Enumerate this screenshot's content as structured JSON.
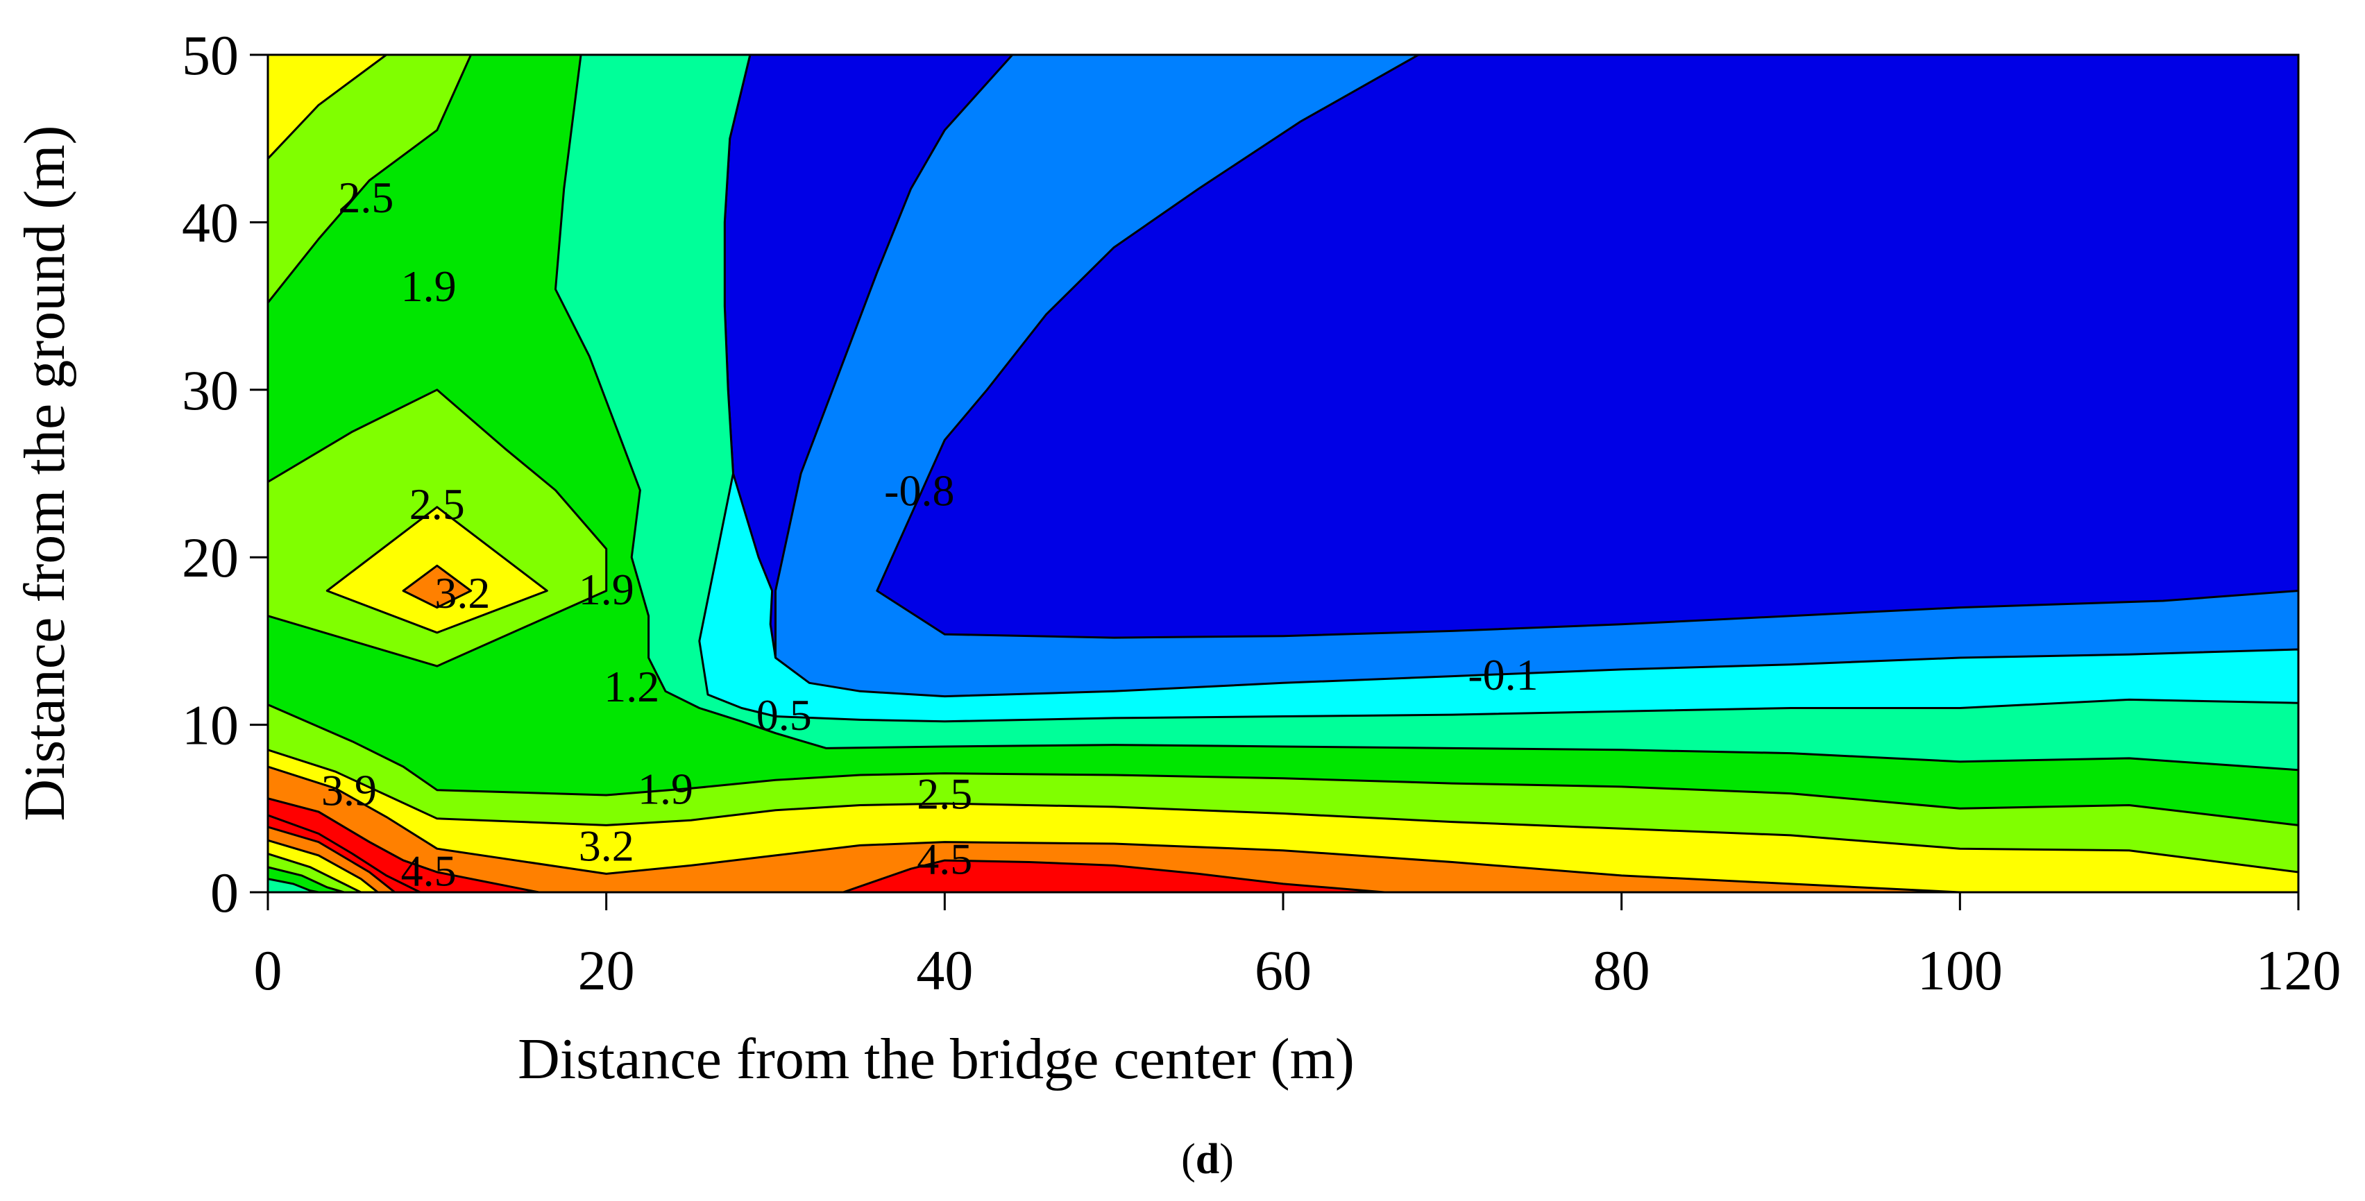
{
  "chart_data": {
    "type": "heatmap",
    "subtype": "filled-contour",
    "xlabel": "Distance from the bridge center (m)",
    "ylabel": "Distance from the ground (m)",
    "xlim": [
      0,
      120
    ],
    "ylim": [
      0,
      50
    ],
    "xticks": [
      "0",
      "20",
      "40",
      "60",
      "80",
      "100",
      "120"
    ],
    "yticks": [
      "0",
      "10",
      "20",
      "30",
      "40",
      "50"
    ],
    "panel_label": {
      "open": "(",
      "letter": "d",
      "close": ")"
    },
    "grid": false,
    "legend": "none",
    "levels": [
      -1.5,
      -0.8,
      -0.1,
      0.5,
      1.2,
      1.9,
      2.5,
      3.2,
      3.9,
      4.5
    ],
    "level_colors": [
      "#0000e6",
      "#0080ff",
      "#00ffff",
      "#00ff99",
      "#00e600",
      "#80ff00",
      "#ffff00",
      "#ff8000",
      "#ff0000"
    ],
    "contour_labels": [
      {
        "text": "2.5",
        "x": 5.8,
        "y": 41.5
      },
      {
        "text": "1.9",
        "x": 9.5,
        "y": 36.2
      },
      {
        "text": "2.5",
        "x": 10,
        "y": 23.2
      },
      {
        "text": "3.2",
        "x": 11.5,
        "y": 17.9
      },
      {
        "text": "1.9",
        "x": 20,
        "y": 18.1
      },
      {
        "text": "1.2",
        "x": 21.5,
        "y": 12.3
      },
      {
        "text": "0.5",
        "x": 30.5,
        "y": 10.6
      },
      {
        "text": "-0.8",
        "x": 38.5,
        "y": 24
      },
      {
        "text": "-0.1",
        "x": 73,
        "y": 13
      },
      {
        "text": "3.9",
        "x": 4.8,
        "y": 6.1
      },
      {
        "text": "1.9",
        "x": 23.5,
        "y": 6.2
      },
      {
        "text": "2.5",
        "x": 40,
        "y": 5.9
      },
      {
        "text": "3.2",
        "x": 20,
        "y": 2.8
      },
      {
        "text": "4.5",
        "x": 9.5,
        "y": 1.3
      },
      {
        "text": "4.5",
        "x": 40,
        "y": 2
      }
    ],
    "regions": [
      {
        "value_range": "below -0.8",
        "color": "#0000e6",
        "x": [
          36,
          40,
          48,
          55,
          62,
          68,
          120,
          120,
          112,
          95,
          80,
          70,
          60,
          50,
          40,
          36
        ],
        "y": [
          18,
          24,
          33,
          38,
          43,
          47,
          47,
          18,
          17.5,
          16.5,
          16,
          15.6,
          15.3,
          15.2,
          15.4,
          18
        ]
      },
      {
        "value_range": "-0.8 to -0.1",
        "color": "#0080ff",
        "x": [
          30,
          31.5,
          36,
          38,
          40,
          44,
          50,
          57,
          60,
          68,
          120,
          120,
          110,
          90,
          70,
          60,
          50,
          40,
          35,
          30
        ],
        "y": [
          18,
          25,
          37,
          42,
          45,
          47.5,
          50,
          50,
          50,
          50,
          50,
          14.5,
          14.3,
          13.5,
          12.9,
          12.5,
          12.0,
          11.7,
          12.0,
          18
        ]
      },
      {
        "value_range": "-0.1 to 0.5",
        "color": "#00ffff",
        "x": [
          26,
          27,
          28,
          29,
          27,
          40,
          44,
          44,
          120,
          120,
          110,
          100,
          80,
          60,
          50,
          40,
          32
        ],
        "y": [
          11.8,
          20,
          30,
          40,
          50,
          50,
          50,
          50,
          50,
          11.2,
          11.5,
          11.0,
          10.8,
          10.5,
          10.4,
          10.2,
          10.6
        ]
      },
      {
        "value_range": "0.5 to 1.2",
        "color": "#00ff99",
        "x": [
          17,
          18,
          20,
          22,
          24,
          26,
          27,
          24,
          30,
          33,
          40,
          50,
          60,
          80,
          100,
          110,
          120,
          120
        ],
        "y": [
          36,
          42,
          50,
          50,
          30,
          16,
          12,
          8,
          8.5,
          8.5,
          8.7,
          8.8,
          8.7,
          8.5,
          7.8,
          8.0,
          7.3,
          50
        ]
      },
      {
        "value_range": "1.2 to 1.9",
        "color": "#00e600",
        "x": [
          0,
          10,
          12,
          14,
          17,
          20,
          22,
          20,
          24,
          22,
          10,
          0
        ],
        "y": [
          36,
          46,
          50,
          50,
          36,
          32,
          25,
          18,
          12,
          8,
          6,
          11.5
        ]
      },
      {
        "value_range": "1.9 to 2.5",
        "color": "#80ff00",
        "x": [
          0,
          3.5,
          10,
          16,
          10,
          0
        ],
        "y": [
          26,
          18,
          30,
          22,
          14,
          18
        ]
      },
      {
        "value_range": "2.5 to 3.2",
        "color": "#ffff00",
        "x": [
          0,
          7,
          0,
          8,
          12,
          10,
          8
        ],
        "y": [
          44,
          50,
          50,
          18,
          16,
          20,
          18
        ]
      },
      {
        "value_range": "3.2 to 3.9",
        "color": "#ff8000",
        "x": [
          0,
          6,
          10,
          20,
          40,
          50,
          60,
          80,
          100,
          120
        ],
        "y": [
          7,
          5,
          3,
          2,
          3,
          3,
          2.5,
          2,
          1.5,
          1.2
        ]
      },
      {
        "value_range": "above 4.5",
        "color": "#ff0000",
        "x": [
          0,
          3,
          7,
          10,
          40,
          50,
          60,
          66
        ],
        "y": [
          5,
          4,
          2,
          0,
          1.5,
          1.5,
          0.5,
          0
        ]
      }
    ]
  }
}
